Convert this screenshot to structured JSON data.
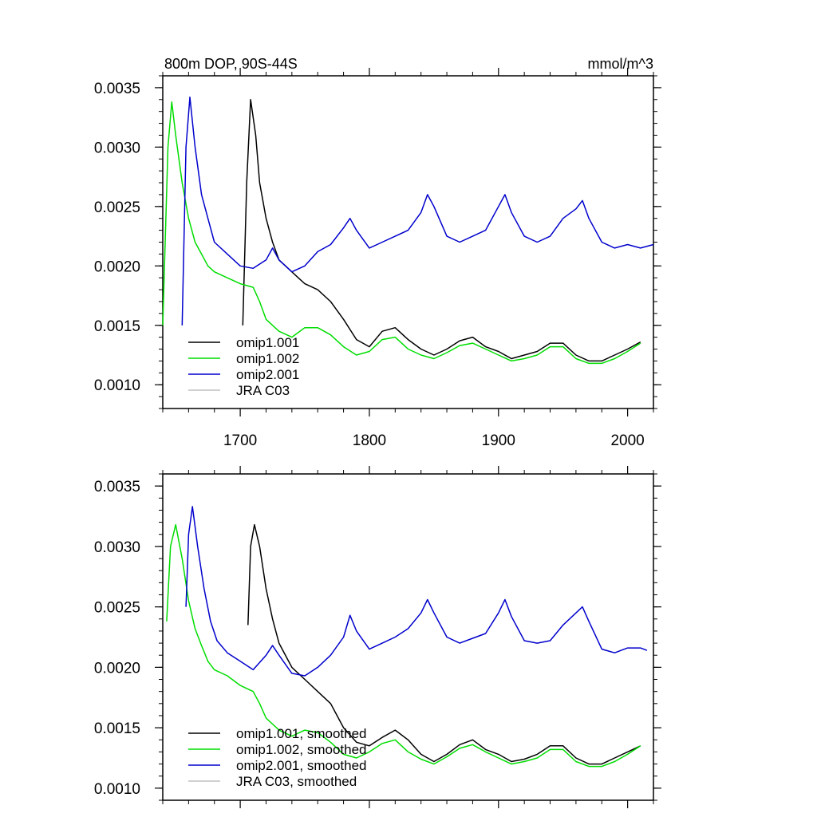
{
  "chart_data": [
    {
      "type": "line",
      "title": "800m DOP, 90S-44S",
      "units": "mmol/m^3",
      "xlim": [
        1640,
        2020
      ],
      "ylim": [
        0.0008,
        0.0036
      ],
      "x_ticks": [
        1700,
        1800,
        1900,
        2000
      ],
      "x_tick_labels": [
        "1700",
        "1800",
        "1900",
        "2000"
      ],
      "y_ticks": [
        0.001,
        0.0015,
        0.002,
        0.0025,
        0.003,
        0.0035
      ],
      "y_tick_labels": [
        "0.0010",
        "0.0015",
        "0.0020",
        "0.0025",
        "0.0030",
        "0.0035"
      ],
      "grid": false,
      "legend": "bottom-left",
      "series": [
        {
          "name": "omip1.001",
          "color": "#000000",
          "x": [
            1702,
            1705,
            1708,
            1712,
            1715,
            1720,
            1725,
            1730,
            1735,
            1740,
            1745,
            1750,
            1760,
            1770,
            1780,
            1790,
            1800,
            1810,
            1820,
            1830,
            1840,
            1850,
            1860,
            1870,
            1880,
            1890,
            1900,
            1910,
            1920,
            1930,
            1940,
            1950,
            1960,
            1970,
            1980,
            1990,
            2000,
            2010
          ],
          "y": [
            0.0015,
            0.0027,
            0.0034,
            0.0031,
            0.0027,
            0.0024,
            0.0022,
            0.00205,
            0.002,
            0.00195,
            0.0019,
            0.00185,
            0.0018,
            0.0017,
            0.00155,
            0.00138,
            0.00132,
            0.00145,
            0.00148,
            0.00138,
            0.0013,
            0.00125,
            0.0013,
            0.00137,
            0.0014,
            0.00132,
            0.00128,
            0.00122,
            0.00125,
            0.00128,
            0.00135,
            0.00135,
            0.00125,
            0.0012,
            0.0012,
            0.00125,
            0.0013,
            0.00136
          ]
        },
        {
          "name": "omip1.002",
          "color": "#00dd00",
          "x": [
            1640,
            1644,
            1647,
            1650,
            1655,
            1660,
            1665,
            1670,
            1675,
            1680,
            1690,
            1700,
            1710,
            1715,
            1720,
            1730,
            1740,
            1750,
            1760,
            1770,
            1780,
            1790,
            1800,
            1810,
            1820,
            1830,
            1840,
            1850,
            1860,
            1870,
            1880,
            1890,
            1900,
            1910,
            1920,
            1930,
            1940,
            1950,
            1960,
            1970,
            1980,
            1990,
            2000,
            2010
          ],
          "y": [
            0.0015,
            0.003,
            0.00338,
            0.0031,
            0.0027,
            0.0024,
            0.0022,
            0.0021,
            0.002,
            0.00195,
            0.0019,
            0.00185,
            0.00182,
            0.0017,
            0.00155,
            0.00145,
            0.0014,
            0.00148,
            0.00148,
            0.00142,
            0.00132,
            0.00125,
            0.00128,
            0.00138,
            0.0014,
            0.0013,
            0.00125,
            0.00122,
            0.00127,
            0.00133,
            0.00135,
            0.0013,
            0.00125,
            0.0012,
            0.00122,
            0.00125,
            0.00132,
            0.00132,
            0.00122,
            0.00118,
            0.00118,
            0.00122,
            0.00128,
            0.00135
          ]
        },
        {
          "name": "omip2.001",
          "color": "#0000cc",
          "x": [
            1655,
            1658,
            1661,
            1665,
            1670,
            1675,
            1680,
            1690,
            1700,
            1710,
            1720,
            1725,
            1730,
            1740,
            1750,
            1760,
            1770,
            1780,
            1785,
            1790,
            1800,
            1810,
            1820,
            1830,
            1840,
            1845,
            1850,
            1860,
            1870,
            1880,
            1890,
            1900,
            1905,
            1910,
            1920,
            1930,
            1940,
            1950,
            1960,
            1965,
            1970,
            1980,
            1990,
            2000,
            2010,
            2020
          ],
          "y": [
            0.0015,
            0.003,
            0.00342,
            0.003,
            0.0026,
            0.0024,
            0.0022,
            0.0021,
            0.002,
            0.00198,
            0.00205,
            0.00215,
            0.00205,
            0.00195,
            0.002,
            0.00212,
            0.00218,
            0.00232,
            0.0024,
            0.0023,
            0.00215,
            0.0022,
            0.00225,
            0.0023,
            0.00245,
            0.0026,
            0.0025,
            0.00225,
            0.0022,
            0.00225,
            0.0023,
            0.0025,
            0.0026,
            0.00245,
            0.00225,
            0.0022,
            0.00225,
            0.0024,
            0.00248,
            0.00255,
            0.0024,
            0.0022,
            0.00215,
            0.00218,
            0.00215,
            0.00218
          ]
        },
        {
          "name": "JRA C03",
          "color": "#c0c0c0",
          "x": [],
          "y": []
        }
      ]
    },
    {
      "type": "line",
      "xlim": [
        1640,
        2020
      ],
      "ylim": [
        0.0009,
        0.0036
      ],
      "x_ticks": [
        1700,
        1800,
        1900,
        2000
      ],
      "y_ticks": [
        0.001,
        0.0015,
        0.002,
        0.0025,
        0.003,
        0.0035
      ],
      "y_tick_labels": [
        "0.0010",
        "0.0015",
        "0.0020",
        "0.0025",
        "0.0030",
        "0.0035"
      ],
      "grid": false,
      "legend": "bottom-left",
      "series": [
        {
          "name": "omip1.001, smoothed",
          "color": "#000000",
          "x": [
            1706,
            1708,
            1711,
            1715,
            1720,
            1725,
            1730,
            1740,
            1750,
            1760,
            1770,
            1780,
            1790,
            1800,
            1810,
            1820,
            1830,
            1840,
            1850,
            1860,
            1870,
            1880,
            1890,
            1900,
            1910,
            1920,
            1930,
            1940,
            1950,
            1960,
            1970,
            1980,
            1990,
            2000,
            2010
          ],
          "y": [
            0.00235,
            0.003,
            0.00318,
            0.003,
            0.00265,
            0.0024,
            0.0022,
            0.002,
            0.0019,
            0.0018,
            0.0017,
            0.0015,
            0.00138,
            0.00135,
            0.00142,
            0.00148,
            0.0014,
            0.00128,
            0.00122,
            0.00128,
            0.00136,
            0.0014,
            0.00132,
            0.00128,
            0.00122,
            0.00124,
            0.00128,
            0.00135,
            0.00135,
            0.00125,
            0.0012,
            0.0012,
            0.00125,
            0.0013,
            0.00135
          ]
        },
        {
          "name": "omip1.002, smoothed",
          "color": "#00dd00",
          "x": [
            1643,
            1646,
            1650,
            1655,
            1660,
            1665,
            1670,
            1675,
            1680,
            1690,
            1700,
            1710,
            1715,
            1720,
            1730,
            1740,
            1750,
            1760,
            1770,
            1780,
            1790,
            1800,
            1810,
            1820,
            1830,
            1840,
            1850,
            1860,
            1870,
            1880,
            1890,
            1900,
            1910,
            1920,
            1930,
            1940,
            1950,
            1960,
            1970,
            1980,
            1990,
            2000,
            2010
          ],
          "y": [
            0.00238,
            0.003,
            0.00318,
            0.0029,
            0.00255,
            0.00232,
            0.00218,
            0.00205,
            0.00198,
            0.00193,
            0.00185,
            0.0018,
            0.0017,
            0.00158,
            0.00148,
            0.00143,
            0.00148,
            0.00146,
            0.00138,
            0.00128,
            0.00125,
            0.0013,
            0.00137,
            0.0014,
            0.0013,
            0.00124,
            0.0012,
            0.00126,
            0.00133,
            0.00136,
            0.0013,
            0.00125,
            0.0012,
            0.00122,
            0.00125,
            0.00132,
            0.00132,
            0.00122,
            0.00118,
            0.00118,
            0.00122,
            0.00128,
            0.00135
          ]
        },
        {
          "name": "omip2.001, smoothed",
          "color": "#0000cc",
          "x": [
            1658,
            1660,
            1663,
            1667,
            1672,
            1677,
            1682,
            1690,
            1700,
            1710,
            1720,
            1725,
            1730,
            1740,
            1750,
            1760,
            1770,
            1780,
            1785,
            1790,
            1800,
            1810,
            1820,
            1830,
            1840,
            1845,
            1850,
            1860,
            1870,
            1880,
            1890,
            1900,
            1905,
            1910,
            1920,
            1930,
            1940,
            1950,
            1960,
            1965,
            1970,
            1980,
            1990,
            2000,
            2010,
            2015
          ],
          "y": [
            0.0025,
            0.0031,
            0.00333,
            0.003,
            0.00265,
            0.00238,
            0.00222,
            0.00212,
            0.00205,
            0.00198,
            0.0021,
            0.00218,
            0.0021,
            0.00195,
            0.00193,
            0.002,
            0.0021,
            0.00225,
            0.00243,
            0.0023,
            0.00215,
            0.0022,
            0.00225,
            0.00232,
            0.00245,
            0.00256,
            0.00245,
            0.00225,
            0.0022,
            0.00224,
            0.00228,
            0.00245,
            0.00256,
            0.00242,
            0.00222,
            0.0022,
            0.00222,
            0.00235,
            0.00245,
            0.0025,
            0.00238,
            0.00215,
            0.00212,
            0.00216,
            0.00216,
            0.00214
          ]
        },
        {
          "name": "JRA C03, smoothed",
          "color": "#c0c0c0",
          "x": [],
          "y": []
        }
      ]
    }
  ]
}
